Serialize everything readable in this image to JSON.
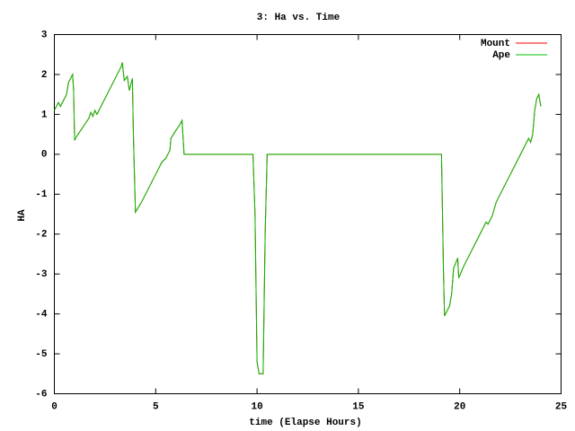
{
  "chart_data": {
    "type": "line",
    "title": "3: Ha vs. Time",
    "x_label": "time (Elapse Hours)",
    "y_label": "HA",
    "x": [
      0,
      0.2,
      0.3,
      0.5,
      0.6,
      0.7,
      0.9,
      0.95,
      1.0,
      1.1,
      1.3,
      1.5,
      1.7,
      1.8,
      1.9,
      2.0,
      2.1,
      2.3,
      2.6,
      2.9,
      3.1,
      3.3,
      3.35,
      3.45,
      3.6,
      3.7,
      3.85,
      3.9,
      4.0,
      4.3,
      4.6,
      5.0,
      5.3,
      5.5,
      5.6,
      5.7,
      5.75,
      6.0,
      6.2,
      6.3,
      6.4,
      9.8,
      9.9,
      10.0,
      10.1,
      10.3,
      10.4,
      10.5,
      19.1,
      19.2,
      19.25,
      19.5,
      19.6,
      19.7,
      19.9,
      19.95,
      20.2,
      20.5,
      20.8,
      21.1,
      21.3,
      21.4,
      21.6,
      21.8,
      22.1,
      22.5,
      22.8,
      23.1,
      23.3,
      23.4,
      23.5,
      23.6,
      23.7,
      23.8,
      23.9,
      24.0
    ],
    "series": [
      {
        "name": "Mount",
        "color": "#ff0000",
        "values": [
          1.1,
          1.3,
          1.2,
          1.4,
          1.5,
          1.8,
          2.0,
          1.6,
          0.35,
          0.45,
          0.6,
          0.75,
          0.9,
          1.05,
          0.95,
          1.1,
          1.0,
          1.2,
          1.5,
          1.8,
          2.0,
          2.2,
          2.3,
          1.85,
          1.95,
          1.6,
          1.9,
          0.5,
          -1.45,
          -1.2,
          -0.9,
          -0.5,
          -0.2,
          -0.1,
          0.0,
          0.1,
          0.4,
          0.6,
          0.75,
          0.85,
          0.0,
          0.0,
          -1.5,
          -5.2,
          -5.5,
          -5.5,
          -2.0,
          0.0,
          0.0,
          -3.0,
          -4.05,
          -3.8,
          -3.5,
          -2.85,
          -2.6,
          -3.1,
          -2.8,
          -2.5,
          -2.2,
          -1.9,
          -1.7,
          -1.75,
          -1.55,
          -1.2,
          -0.9,
          -0.5,
          -0.2,
          0.1,
          0.3,
          0.4,
          0.3,
          0.5,
          1.1,
          1.4,
          1.5,
          1.2
        ]
      },
      {
        "name": "Ape",
        "color": "#00c000",
        "values": [
          1.1,
          1.3,
          1.2,
          1.4,
          1.5,
          1.8,
          2.0,
          1.6,
          0.35,
          0.45,
          0.6,
          0.75,
          0.9,
          1.05,
          0.95,
          1.1,
          1.0,
          1.2,
          1.5,
          1.8,
          2.0,
          2.2,
          2.3,
          1.85,
          1.95,
          1.6,
          1.9,
          0.5,
          -1.45,
          -1.2,
          -0.9,
          -0.5,
          -0.2,
          -0.1,
          0.0,
          0.1,
          0.4,
          0.6,
          0.75,
          0.85,
          0.0,
          0.0,
          -1.5,
          -5.2,
          -5.5,
          -5.5,
          -2.0,
          0.0,
          0.0,
          -3.0,
          -4.05,
          -3.8,
          -3.5,
          -2.85,
          -2.6,
          -3.1,
          -2.8,
          -2.5,
          -2.2,
          -1.9,
          -1.7,
          -1.75,
          -1.55,
          -1.2,
          -0.9,
          -0.5,
          -0.2,
          0.1,
          0.3,
          0.4,
          0.3,
          0.5,
          1.1,
          1.4,
          1.5,
          1.2
        ]
      }
    ],
    "xlim": [
      0,
      25
    ],
    "xticks": [
      0,
      5,
      10,
      15,
      20,
      25
    ],
    "ylim": [
      -6,
      3
    ],
    "yticks": [
      -6,
      -5,
      -4,
      -3,
      -2,
      -1,
      0,
      1,
      2,
      3
    ],
    "legend": "top-right"
  }
}
